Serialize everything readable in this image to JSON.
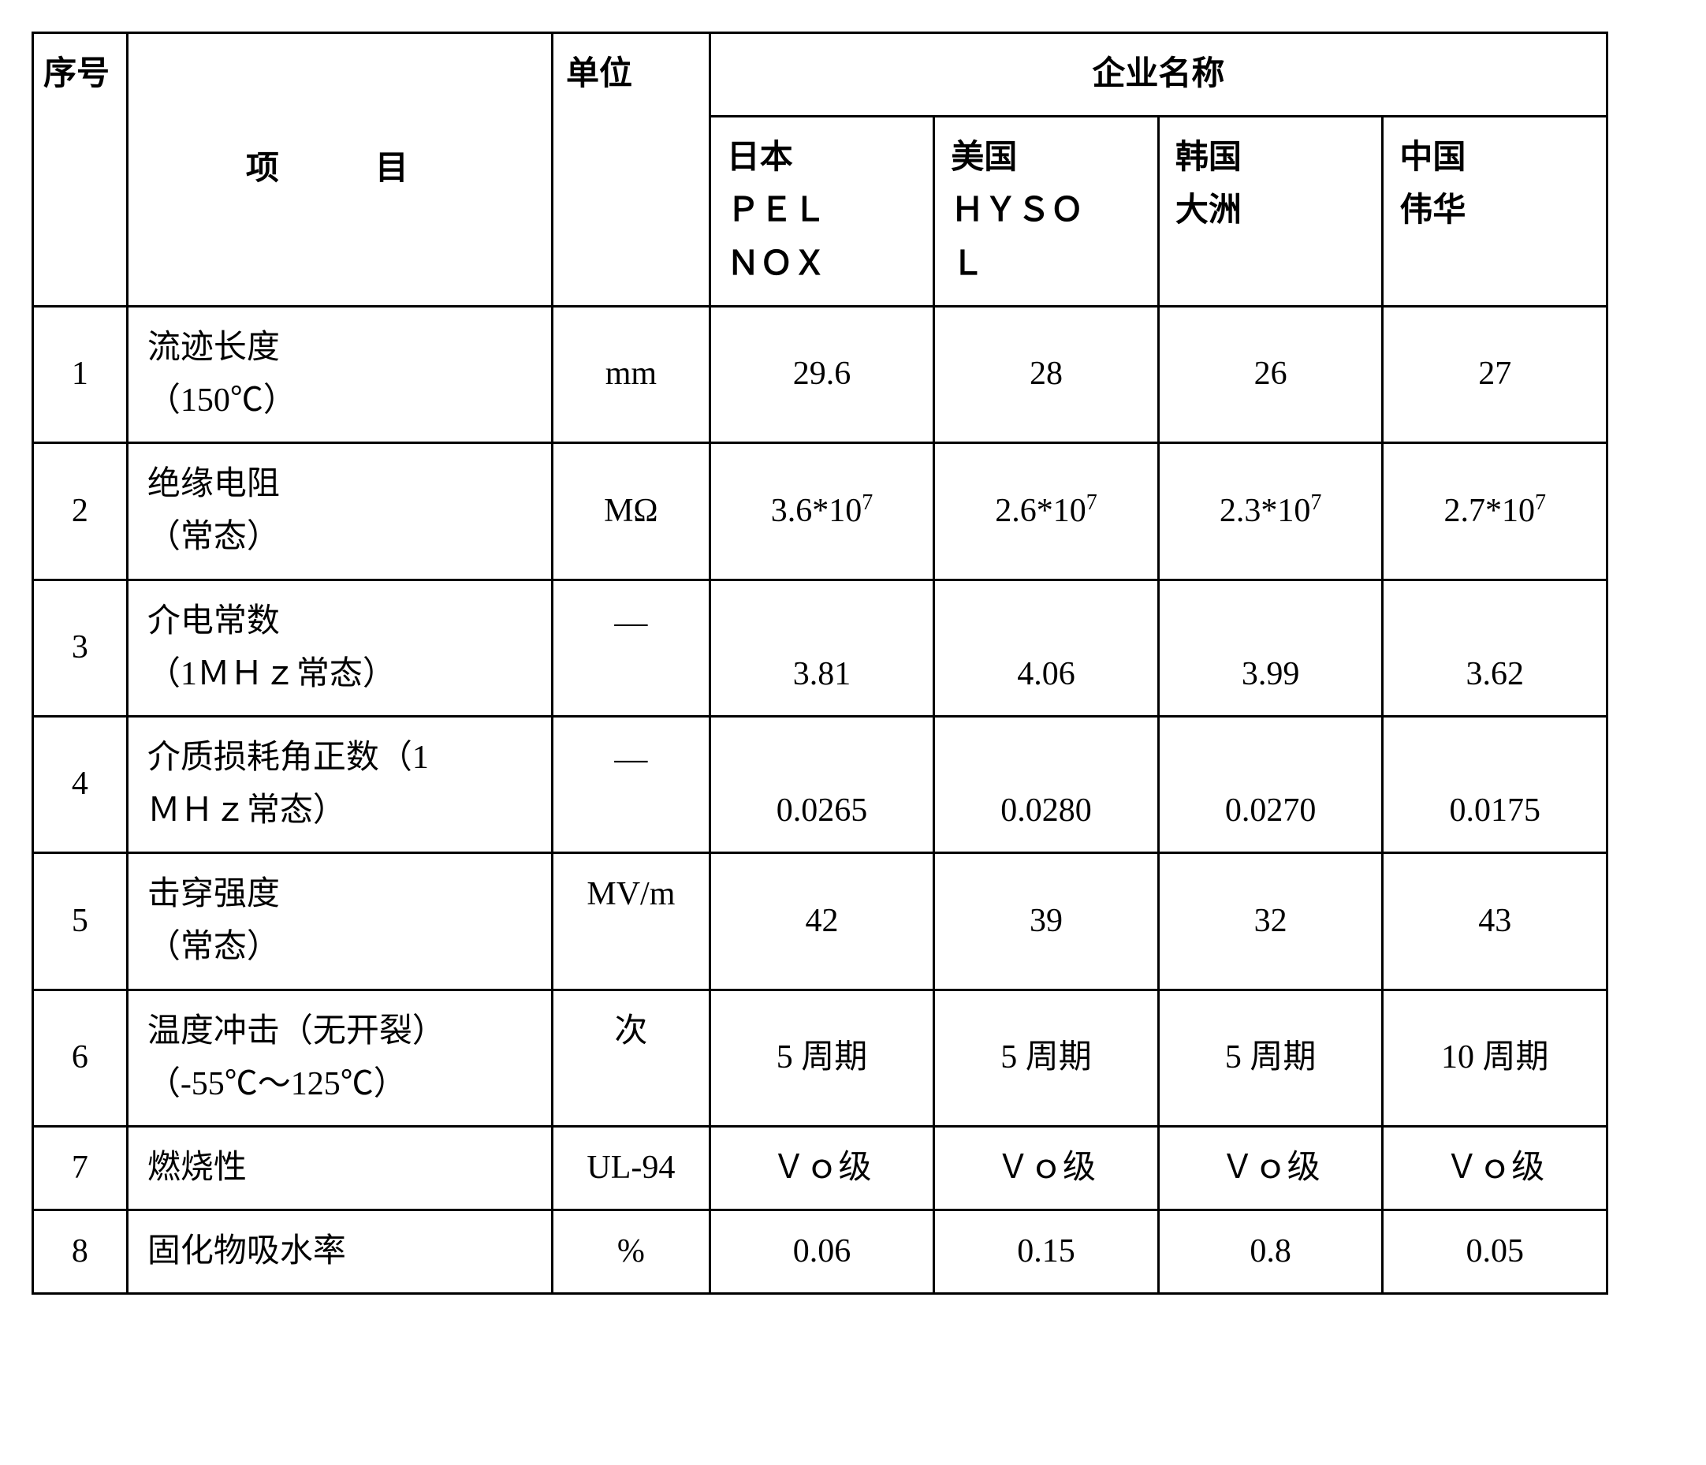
{
  "headers": {
    "seq": "序号",
    "item": "项　目",
    "unit": "单位",
    "company_group": "企业名称",
    "companies": {
      "japan_line1": "日本",
      "japan_line2": "ＰＥＬ",
      "japan_line3": "ＮＯＸ",
      "usa_line1": "美国",
      "usa_line2": "ＨＹＳＯ",
      "usa_line3": "Ｌ",
      "korea_line1": "韩国",
      "korea_line2": "大洲",
      "china_line1": "中国",
      "china_line2": "伟华"
    }
  },
  "rows": {
    "r1": {
      "seq": "1",
      "item_line1": "流迹长度",
      "item_line2": "（150℃）",
      "unit": "mm",
      "japan": "29.6",
      "usa": "28",
      "korea": "26",
      "china": "27"
    },
    "r2": {
      "seq": "2",
      "item_line1": "绝缘电阻",
      "item_line2": "（常态）",
      "unit": "MΩ",
      "japan_base": "3.6*10",
      "japan_sup": "7",
      "usa_base": "2.6*10",
      "usa_sup": "7",
      "korea_base": "2.3*10",
      "korea_sup": "7",
      "china_base": "2.7*10",
      "china_sup": "7"
    },
    "r3": {
      "seq": "3",
      "item_line1": "介电常数",
      "item_line2": "（1ＭＨｚ常态）",
      "unit": "—",
      "japan": "3.81",
      "usa": "4.06",
      "korea": "3.99",
      "china": "3.62"
    },
    "r4": {
      "seq": "4",
      "item_line1": "介质损耗角正数（1",
      "item_line2": "ＭＨｚ常态）",
      "unit": "—",
      "japan": "0.0265",
      "usa": "0.0280",
      "korea": "0.0270",
      "china": "0.0175"
    },
    "r5": {
      "seq": "5",
      "item_line1": "击穿强度",
      "item_line2": "（常态）",
      "unit": "MV/m",
      "japan": "42",
      "usa": "39",
      "korea": "32",
      "china": "43"
    },
    "r6": {
      "seq": "6",
      "item_line1": "温度冲击（无开裂）",
      "item_line2": "（-55℃～125℃）",
      "unit": "次",
      "japan": "5 周期",
      "usa": "5 周期",
      "korea": "5 周期",
      "china": "10 周期"
    },
    "r7": {
      "seq": "7",
      "item": "燃烧性",
      "unit": "UL-94",
      "japan": "Ｖｏ级",
      "usa": "Ｖｏ级",
      "korea": "Ｖｏ级",
      "china": "Ｖｏ级"
    },
    "r8": {
      "seq": "8",
      "item": "固化物吸水率",
      "unit": "%",
      "japan": "0.06",
      "usa": "0.15",
      "korea": "0.8",
      "china": "0.05"
    }
  }
}
